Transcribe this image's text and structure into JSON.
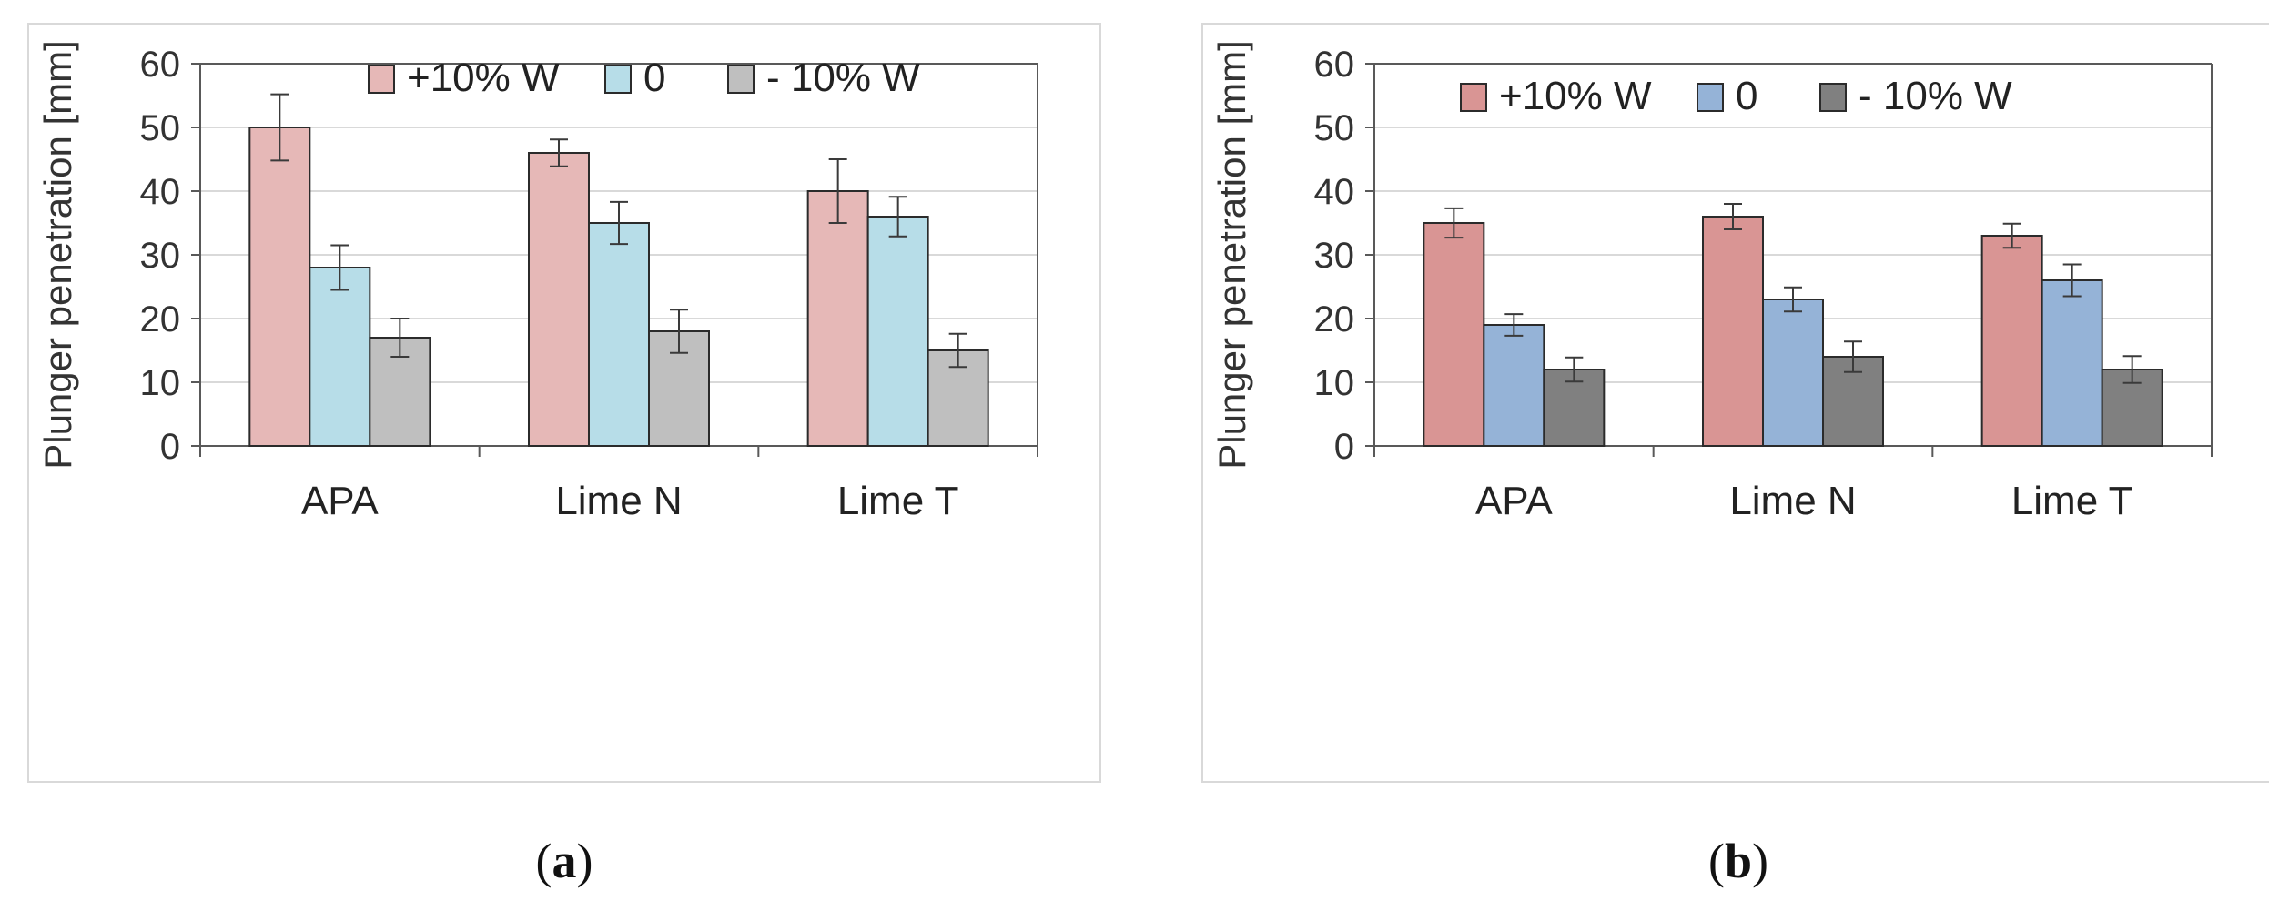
{
  "chart_data": [
    {
      "type": "bar",
      "panel": "a",
      "caption_letter": "a",
      "ylabel": "Plunger penetration [mm]",
      "xlabel": "",
      "ylim": [
        0,
        60
      ],
      "yticks": [
        0,
        10,
        20,
        30,
        40,
        50,
        60
      ],
      "grid": true,
      "legend_position": "top-right",
      "categories": [
        "APA",
        "Lime N",
        "Lime T"
      ],
      "series": [
        {
          "name": "+10% W",
          "color": "#e6b8b7",
          "values": [
            50,
            46,
            40
          ],
          "errors": [
            5.2,
            2.1,
            5.0
          ]
        },
        {
          "name": "0",
          "color": "#b7dde8",
          "values": [
            28,
            35,
            36
          ],
          "errors": [
            3.5,
            3.3,
            3.1
          ]
        },
        {
          "name": "- 10% W",
          "color": "#bfbfbf",
          "values": [
            17,
            18,
            15
          ],
          "errors": [
            3.0,
            3.4,
            2.6
          ]
        }
      ]
    },
    {
      "type": "bar",
      "panel": "b",
      "caption_letter": "b",
      "ylabel": "Plunger penetration [mm]",
      "xlabel": "",
      "ylim": [
        0,
        60
      ],
      "yticks": [
        0,
        10,
        20,
        30,
        40,
        50,
        60
      ],
      "grid": true,
      "legend_position": "top-center",
      "categories": [
        "APA",
        "Lime N",
        "Lime T"
      ],
      "series": [
        {
          "name": "+10% W",
          "color": "#d99594",
          "values": [
            35,
            36,
            33
          ],
          "errors": [
            2.3,
            2.0,
            1.9
          ]
        },
        {
          "name": "0",
          "color": "#95b3d7",
          "values": [
            19,
            23,
            26
          ],
          "errors": [
            1.7,
            1.9,
            2.5
          ]
        },
        {
          "name": "- 10% W",
          "color": "#808080",
          "values": [
            12,
            14,
            12
          ],
          "errors": [
            1.9,
            2.4,
            2.1
          ]
        }
      ]
    }
  ]
}
